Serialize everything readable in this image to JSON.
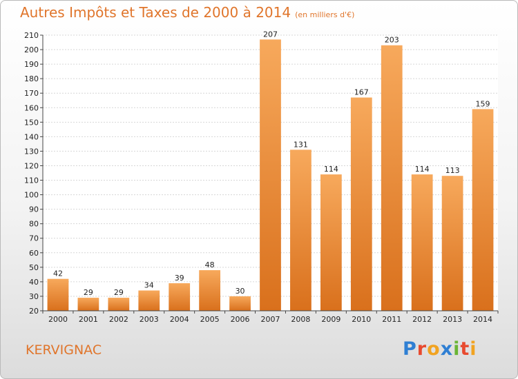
{
  "header": {
    "title": "Autres Impôts et Taxes de 2000 à 2014",
    "subtitle": "(en milliers d'€)"
  },
  "footer": {
    "commune": "KERVIGNAC",
    "logo_text": "Proxiti"
  },
  "colors": {
    "bar_light": "#f7a95c",
    "bar_dark": "#d9701c",
    "accent": "#e0752b"
  },
  "chart_data": {
    "type": "bar",
    "title": "Autres Impôts et Taxes de 2000 à 2014",
    "subtitle": "(en milliers d'€)",
    "categories": [
      "2000",
      "2001",
      "2002",
      "2003",
      "2004",
      "2005",
      "2006",
      "2007",
      "2008",
      "2009",
      "2010",
      "2011",
      "2012",
      "2013",
      "2014"
    ],
    "values": [
      42,
      29,
      29,
      34,
      39,
      48,
      30,
      207,
      131,
      114,
      167,
      203,
      114,
      113,
      159
    ],
    "ylim": [
      20,
      210
    ],
    "yticks": [
      20,
      30,
      40,
      50,
      60,
      70,
      80,
      90,
      100,
      110,
      120,
      130,
      140,
      150,
      160,
      170,
      180,
      190,
      200,
      210
    ],
    "grid": true,
    "data_labels": true
  }
}
